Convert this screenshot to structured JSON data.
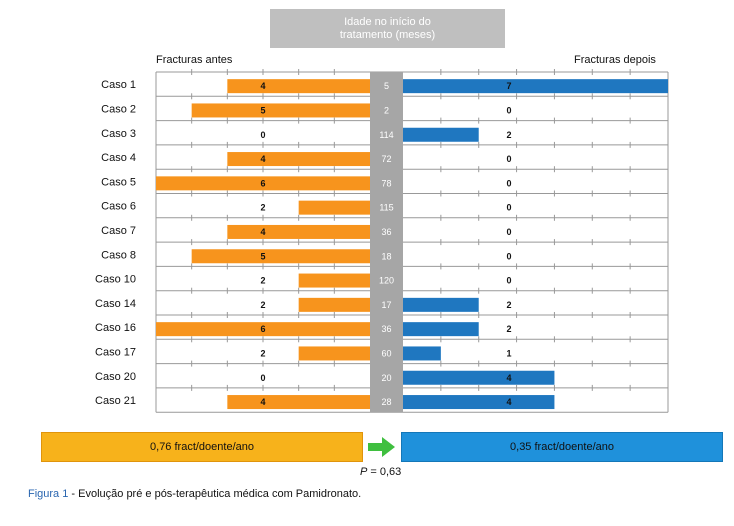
{
  "header": {
    "title": "Idade no início do tratamento (meses)"
  },
  "labels": {
    "left": "Fracturas antes",
    "right": "Fracturas depois"
  },
  "chart_data": {
    "type": "bar",
    "title": "Idade no início do tratamento (meses)",
    "categories": [
      "Caso 1",
      "Caso 2",
      "Caso 3",
      "Caso 4",
      "Caso 5",
      "Caso 6",
      "Caso 7",
      "Caso 8",
      "Caso 10",
      "Caso 14",
      "Caso 16",
      "Caso 17",
      "Caso 20",
      "Caso 21"
    ],
    "series": [
      {
        "name": "Fracturas antes",
        "values": [
          4,
          5,
          0,
          4,
          6,
          2,
          4,
          5,
          2,
          2,
          6,
          2,
          0,
          4
        ],
        "color": "#f7941d"
      },
      {
        "name": "Fracturas depois",
        "values": [
          7,
          0,
          2,
          0,
          0,
          0,
          0,
          0,
          0,
          2,
          2,
          1,
          4,
          4
        ],
        "color": "#1f77c0"
      }
    ],
    "ages": [
      5,
      2,
      114,
      72,
      78,
      115,
      36,
      18,
      120,
      17,
      36,
      60,
      20,
      28
    ],
    "xlim": [
      0,
      7
    ],
    "center_color": "#a6a6a6"
  },
  "summary": {
    "left": "0,76 fract/doente/ano",
    "right": "0,35 fract/doente/ano",
    "p_label": "P",
    "p_value": " = 0,63"
  },
  "caption": {
    "figure": "Figura 1",
    "text": " - Evolução pré e pós-terapêutica médica com Pamidronato."
  }
}
